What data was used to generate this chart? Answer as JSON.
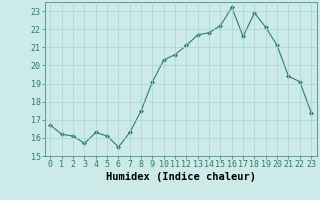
{
  "x": [
    0,
    1,
    2,
    3,
    4,
    5,
    6,
    7,
    8,
    9,
    10,
    11,
    12,
    13,
    14,
    15,
    16,
    17,
    18,
    19,
    20,
    21,
    22,
    23
  ],
  "y": [
    16.7,
    16.2,
    16.1,
    15.7,
    16.3,
    16.1,
    15.5,
    16.3,
    17.5,
    19.1,
    20.3,
    20.6,
    21.1,
    21.7,
    21.8,
    22.2,
    23.2,
    21.6,
    22.9,
    22.1,
    21.1,
    19.4,
    19.1,
    17.4
  ],
  "line_color": "#2e7d6e",
  "marker": "D",
  "marker_size": 2,
  "bg_color": "#cceae7",
  "grid_color": "#aad4d0",
  "xlabel": "Humidex (Indice chaleur)",
  "xlim": [
    -0.5,
    23.5
  ],
  "ylim": [
    15,
    23.5
  ],
  "yticks": [
    15,
    16,
    17,
    18,
    19,
    20,
    21,
    22,
    23
  ],
  "xticks": [
    0,
    1,
    2,
    3,
    4,
    5,
    6,
    7,
    8,
    9,
    10,
    11,
    12,
    13,
    14,
    15,
    16,
    17,
    18,
    19,
    20,
    21,
    22,
    23
  ],
  "tick_fontsize": 6,
  "label_fontsize": 7.5
}
